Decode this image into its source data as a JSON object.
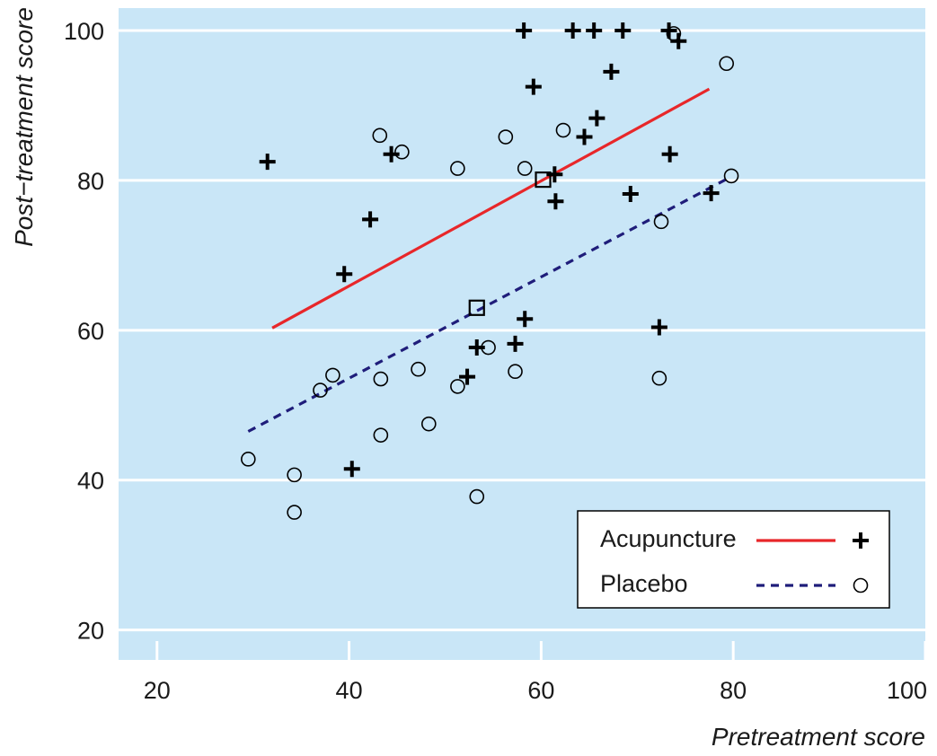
{
  "chart_data": {
    "type": "scatter",
    "xlabel": "Pretreatment score",
    "ylabel": "Post−treatment score",
    "xlim": [
      16,
      100
    ],
    "ylim": [
      16,
      103
    ],
    "x_ticks": [
      20,
      40,
      60,
      80,
      100
    ],
    "y_ticks": [
      20,
      40,
      60,
      80,
      100
    ],
    "grid": "horizontal",
    "background_color": "#c9e6f7",
    "legend_position": "bottom-right",
    "series": [
      {
        "name": "Acupuncture",
        "marker": "plus",
        "color": "#000000",
        "points": [
          [
            31.5,
            82.5
          ],
          [
            39.5,
            67.5
          ],
          [
            40.3,
            41.5
          ],
          [
            42.2,
            74.8
          ],
          [
            44.4,
            83.5
          ],
          [
            52.3,
            53.8
          ],
          [
            53.3,
            57.7
          ],
          [
            57.3,
            58.2
          ],
          [
            58.2,
            100
          ],
          [
            58.3,
            61.5
          ],
          [
            59.2,
            92.5
          ],
          [
            61.4,
            80.8
          ],
          [
            61.5,
            77.2
          ],
          [
            63.3,
            100
          ],
          [
            64.5,
            85.8
          ],
          [
            65.5,
            100
          ],
          [
            65.8,
            88.3
          ],
          [
            67.3,
            94.5
          ],
          [
            68.5,
            100
          ],
          [
            69.3,
            78.2
          ],
          [
            72.3,
            60.4
          ],
          [
            73.3,
            100
          ],
          [
            73.4,
            83.5
          ],
          [
            74.3,
            98.6
          ],
          [
            77.7,
            78.3
          ]
        ],
        "fit_line": {
          "color": "#e8272a",
          "style": "solid",
          "x": [
            32,
            77.5
          ],
          "y": [
            60.3,
            92.2
          ]
        },
        "mean_marker": [
          60.2,
          80.1
        ]
      },
      {
        "name": "Placebo",
        "marker": "circle",
        "color": "#000000",
        "points": [
          [
            29.5,
            42.8
          ],
          [
            34.3,
            40.7
          ],
          [
            34.3,
            35.7
          ],
          [
            37.0,
            52.0
          ],
          [
            38.3,
            54.0
          ],
          [
            43.2,
            86.0
          ],
          [
            43.3,
            53.5
          ],
          [
            43.3,
            46.0
          ],
          [
            45.5,
            83.8
          ],
          [
            47.2,
            54.8
          ],
          [
            48.3,
            47.5
          ],
          [
            51.3,
            52.5
          ],
          [
            51.3,
            81.6
          ],
          [
            53.3,
            37.8
          ],
          [
            54.5,
            57.7
          ],
          [
            56.3,
            85.8
          ],
          [
            57.3,
            54.5
          ],
          [
            58.3,
            81.6
          ],
          [
            62.3,
            86.7
          ],
          [
            72.3,
            53.6
          ],
          [
            72.5,
            74.5
          ],
          [
            73.8,
            99.6
          ],
          [
            79.3,
            95.6
          ],
          [
            79.8,
            80.6
          ]
        ],
        "fit_line": {
          "color": "#1f1d7a",
          "style": "dashed",
          "x": [
            29.5,
            79.5
          ],
          "y": [
            46.5,
            80.3
          ]
        },
        "mean_marker": [
          53.3,
          63.0
        ]
      }
    ]
  }
}
